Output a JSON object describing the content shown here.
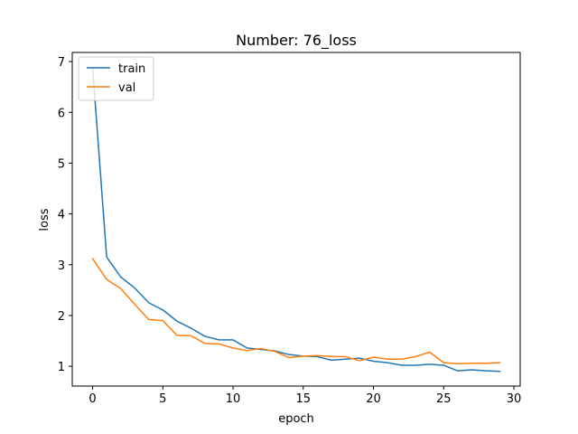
{
  "chart_data": {
    "type": "line",
    "title": "Number: 76_loss",
    "xlabel": "epoch",
    "ylabel": "loss",
    "xlim": [
      -1.45,
      30.45
    ],
    "ylim": [
      0.61,
      7.18
    ],
    "xticks": [
      0,
      5,
      10,
      15,
      20,
      25,
      30
    ],
    "yticks": [
      1,
      2,
      3,
      4,
      5,
      6,
      7
    ],
    "grid": false,
    "legend_position": "top-left",
    "x": [
      0,
      1,
      2,
      3,
      4,
      5,
      6,
      7,
      8,
      9,
      10,
      11,
      12,
      13,
      14,
      15,
      16,
      17,
      18,
      19,
      20,
      21,
      22,
      23,
      24,
      25,
      26,
      27,
      28,
      29
    ],
    "series": [
      {
        "name": "train",
        "color": "#1f77b4",
        "values": [
          6.88,
          3.15,
          2.76,
          2.54,
          2.25,
          2.11,
          1.89,
          1.75,
          1.59,
          1.52,
          1.52,
          1.36,
          1.33,
          1.3,
          1.23,
          1.2,
          1.19,
          1.12,
          1.14,
          1.16,
          1.1,
          1.07,
          1.02,
          1.02,
          1.04,
          1.02,
          0.91,
          0.93,
          0.91,
          0.9
        ]
      },
      {
        "name": "val",
        "color": "#ff7f0e",
        "values": [
          3.12,
          2.71,
          2.53,
          2.22,
          1.92,
          1.9,
          1.61,
          1.6,
          1.45,
          1.44,
          1.36,
          1.31,
          1.35,
          1.29,
          1.17,
          1.2,
          1.21,
          1.19,
          1.19,
          1.11,
          1.18,
          1.14,
          1.14,
          1.19,
          1.28,
          1.07,
          1.05,
          1.06,
          1.06,
          1.07
        ]
      }
    ]
  }
}
